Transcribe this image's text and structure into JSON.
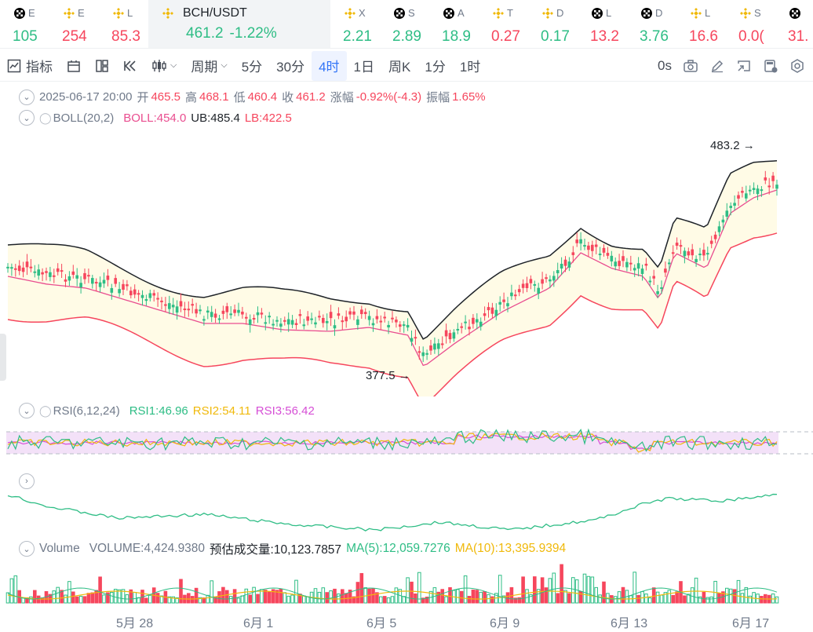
{
  "tickers": [
    {
      "name": "E",
      "price": "105",
      "dir": "up",
      "icon": "okx-icon"
    },
    {
      "name": "E",
      "price": "254",
      "dir": "dn",
      "icon": "bnb-icon"
    },
    {
      "name": "L",
      "price": "85.3",
      "dir": "dn",
      "icon": "bnb-icon"
    },
    {
      "name": "BCH/USDT",
      "price": "461.2",
      "change": "-1.22%",
      "dir": "up",
      "icon": "bnb-icon",
      "active": true
    },
    {
      "name": "X",
      "price": "2.21",
      "dir": "up",
      "icon": "bnb-icon"
    },
    {
      "name": "S",
      "price": "2.89",
      "dir": "up",
      "icon": "okx-icon"
    },
    {
      "name": "A",
      "price": "18.9",
      "dir": "up",
      "icon": "okx-icon"
    },
    {
      "name": "T",
      "price": "0.27",
      "dir": "dn",
      "icon": "bnb-icon"
    },
    {
      "name": "D",
      "price": "0.17",
      "dir": "up",
      "icon": "bnb-icon"
    },
    {
      "name": "L",
      "price": "13.2",
      "dir": "dn",
      "icon": "okx-icon"
    },
    {
      "name": "D",
      "price": "3.76",
      "dir": "up",
      "icon": "okx-icon"
    },
    {
      "name": "L",
      "price": "16.6",
      "dir": "dn",
      "icon": "bnb-icon"
    },
    {
      "name": "S",
      "price": "0.0(",
      "dir": "dn",
      "icon": "bnb-icon"
    },
    {
      "name": "",
      "price": "31.",
      "dir": "dn",
      "icon": "okx-icon"
    }
  ],
  "toolbar": {
    "indicators": "指标",
    "period": "周期",
    "intervals": [
      "5分",
      "30分",
      "4时",
      "1日",
      "周K",
      "1分",
      "1时"
    ],
    "selected": "4时",
    "countdown": "0s"
  },
  "ohlc": {
    "date": "2025-06-17 20:00",
    "open_l": "开",
    "open": "465.5",
    "high_l": "高",
    "high": "468.1",
    "low_l": "低",
    "low": "460.4",
    "close_l": "收",
    "close": "461.2",
    "chg_l": "涨幅",
    "chg": "-0.92%(-4.3)",
    "amp_l": "振幅",
    "amp": "1.65%"
  },
  "boll": {
    "name": "BOLL(20,2)",
    "mid": "BOLL:454.0",
    "ub": "UB:485.4",
    "lb": "LB:422.5"
  },
  "rsi": {
    "name": "RSI(6,12,24)",
    "r1": "RSI1:46.96",
    "r2": "RSI2:54.11",
    "r3": "RSI3:56.42"
  },
  "volume": {
    "name": "Volume",
    "vol": "VOLUME:4,424.9380",
    "est": "预估成交量:10,123.7857",
    "ma5": "MA(5):12,059.7276",
    "ma10": "MA(10):13,395.9394"
  },
  "annotations": {
    "high": "483.2",
    "low": "377.5"
  },
  "dates": [
    "5月 28",
    "6月 1",
    "6月 5",
    "6月 9",
    "6月 13",
    "6月 17"
  ],
  "colors": {
    "up": "#2ebd85",
    "down": "#f6465d",
    "accent": "#3375f7"
  }
}
